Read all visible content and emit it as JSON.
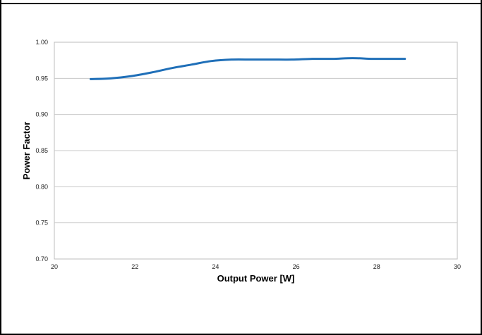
{
  "chart_data": {
    "type": "line",
    "xlabel": "Output Power [W]",
    "ylabel": "Power Factor",
    "xlim": [
      20,
      30
    ],
    "ylim": [
      0.7,
      1.0
    ],
    "x_ticks": [
      "20",
      "22",
      "24",
      "26",
      "28",
      "30"
    ],
    "y_ticks": [
      "1.00",
      "0.95",
      "0.90",
      "0.85",
      "0.80",
      "0.75",
      "0.70"
    ],
    "grid": "horizontal",
    "legend": "none",
    "series": [
      {
        "color": "#1f6fb8",
        "x": [
          20.9,
          21.4,
          21.9,
          22.4,
          22.9,
          23.4,
          23.9,
          24.4,
          24.9,
          25.4,
          25.9,
          26.4,
          26.9,
          27.4,
          27.9,
          28.4,
          28.7
        ],
        "y": [
          0.949,
          0.95,
          0.953,
          0.958,
          0.964,
          0.969,
          0.974,
          0.976,
          0.976,
          0.976,
          0.976,
          0.977,
          0.977,
          0.978,
          0.977,
          0.977,
          0.977
        ]
      }
    ]
  }
}
